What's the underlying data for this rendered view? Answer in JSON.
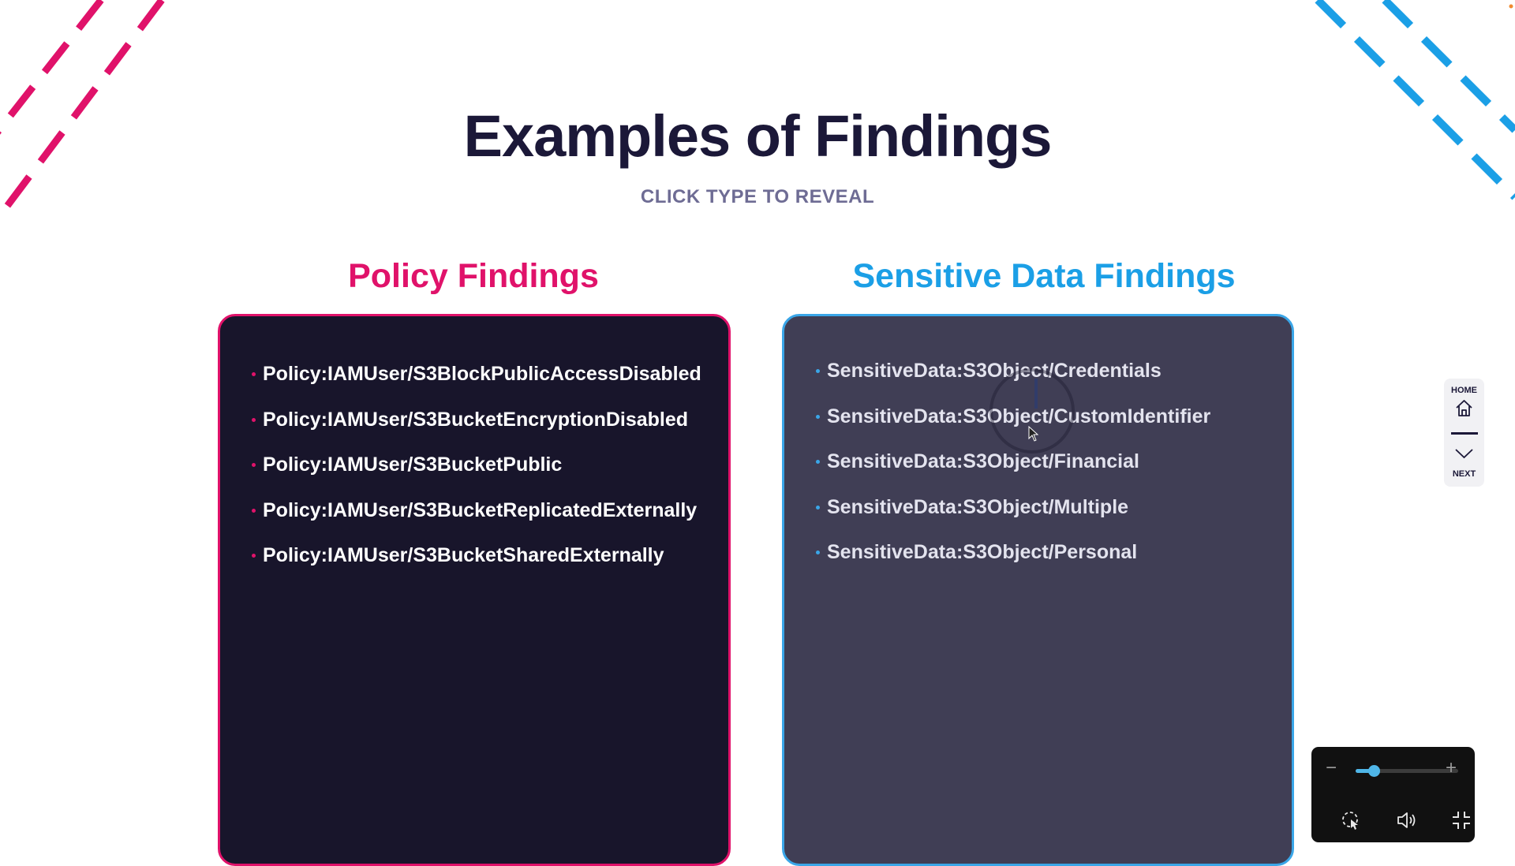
{
  "header": {
    "title": "Examples of Findings",
    "subtitle": "CLICK TYPE TO REVEAL"
  },
  "columns": {
    "policy": {
      "title": "Policy Findings",
      "items": [
        "Policy:IAMUser/S3BlockPublicAccessDisabled",
        "Policy:IAMUser/S3BucketEncryptionDisabled",
        "Policy:IAMUser/S3BucketPublic",
        "Policy:IAMUser/S3BucketReplicatedExternally",
        "Policy:IAMUser/S3BucketSharedExternally"
      ]
    },
    "sensitive": {
      "title": "Sensitive Data Findings",
      "items": [
        "SensitiveData:S3Object/Credentials",
        "SensitiveData:S3Object/CustomIdentifier",
        "SensitiveData:S3Object/Financial",
        "SensitiveData:S3Object/Multiple",
        "SensitiveData:S3Object/Personal"
      ]
    }
  },
  "nav": {
    "home_label": "HOME",
    "next_label": "NEXT",
    "home_icon": "home-icon",
    "next_icon": "chevron-down-icon"
  },
  "player": {
    "zoom_level": 0.18,
    "icons": [
      "zoom-out-icon",
      "zoom-in-icon",
      "cursor-highlight-icon",
      "volume-icon",
      "exit-fullscreen-icon"
    ]
  },
  "colors": {
    "heading": "#1b1838",
    "policy_accent": "#e0126a",
    "sensitive_accent": "#1b9fe6",
    "policy_card_bg": "#18152b",
    "sensitive_card_bg": "#403e55",
    "slider_accent": "#4fb6e8"
  }
}
